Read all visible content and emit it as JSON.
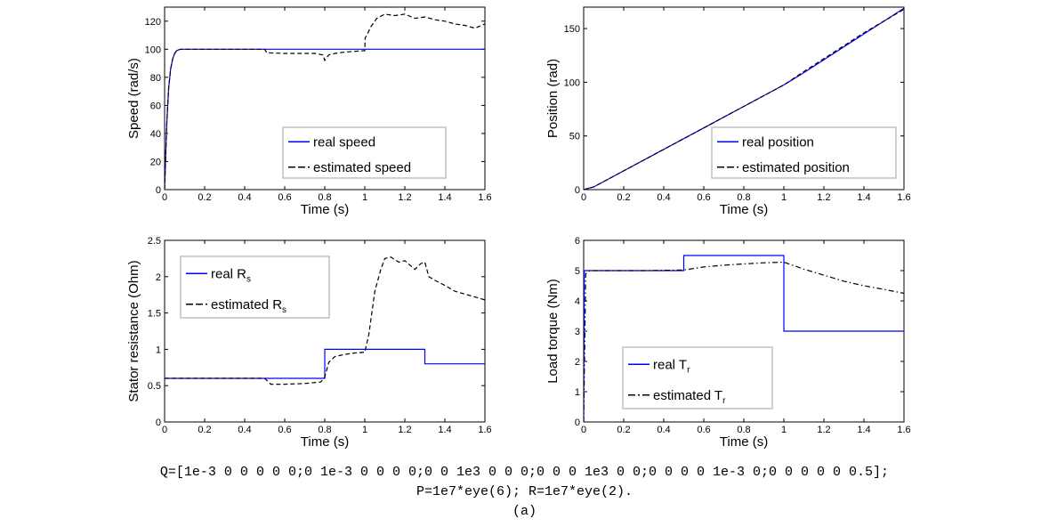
{
  "colors": {
    "real": "#0000ff",
    "estimated": "#000000",
    "frame": "#000000",
    "legend_border": "#c0c0c0"
  },
  "caption": {
    "line1": "Q=[1e-3 0 0 0 0 0;0 1e-3 0 0 0 0;0 0 1e3 0 0 0;0 0 0 1e3 0 0;0 0 0 0 1e-3 0;0 0 0 0 0 0.5];",
    "line2": "P=1e7*eye(6); R=1e7*eye(2).",
    "label": "(a)"
  },
  "chart_data": [
    {
      "type": "line",
      "xlabel": "Time (s)",
      "ylabel": "Speed (rad/s)",
      "xlim": [
        0,
        1.6
      ],
      "ylim": [
        0,
        130
      ],
      "xticks": [
        0,
        0.2,
        0.4,
        0.6,
        0.8,
        1,
        1.2,
        1.4,
        1.6
      ],
      "yticks": [
        0,
        20,
        40,
        60,
        80,
        100,
        120
      ],
      "legend_position": "bottom-right",
      "series": [
        {
          "name": "real  speed",
          "style": "solid",
          "x": [
            0,
            0.01,
            0.02,
            0.03,
            0.04,
            0.05,
            0.06,
            0.07,
            0.08,
            0.1,
            0.3,
            0.5,
            0.7,
            0.9,
            1.0,
            1.2,
            1.4,
            1.6
          ],
          "y": [
            0,
            45,
            72,
            86,
            93,
            97,
            99,
            99.6,
            100,
            100,
            100,
            100,
            100,
            100,
            100,
            100,
            100,
            100
          ]
        },
        {
          "name": "estimated speed",
          "style": "dashed",
          "x": [
            0,
            0.01,
            0.02,
            0.03,
            0.04,
            0.05,
            0.06,
            0.08,
            0.1,
            0.3,
            0.5,
            0.51,
            0.6,
            0.7,
            0.75,
            0.79,
            0.8,
            0.82,
            0.85,
            0.9,
            0.95,
            1.0,
            1.002,
            1.01,
            1.03,
            1.06,
            1.1,
            1.15,
            1.2,
            1.25,
            1.3,
            1.35,
            1.4,
            1.45,
            1.5,
            1.55,
            1.6
          ],
          "y": [
            0,
            45,
            72,
            86,
            93,
            97,
            99,
            100,
            100,
            100,
            100,
            97.5,
            97,
            97,
            97,
            96,
            92,
            96,
            97,
            98,
            98.5,
            99,
            108,
            110,
            116,
            122,
            125,
            124,
            125,
            122,
            123,
            121,
            120,
            118,
            117,
            115,
            118
          ]
        }
      ]
    },
    {
      "type": "line",
      "xlabel": "Time (s)",
      "ylabel": "Position (rad)",
      "xlim": [
        0,
        1.6
      ],
      "ylim": [
        0,
        170
      ],
      "xticks": [
        0,
        0.2,
        0.4,
        0.6,
        0.8,
        1,
        1.2,
        1.4,
        1.6
      ],
      "yticks": [
        0,
        50,
        100,
        150
      ],
      "legend_position": "bottom-right",
      "series": [
        {
          "name": "real  position",
          "style": "solid",
          "x": [
            0,
            0.05,
            0.1,
            0.2,
            0.4,
            0.6,
            0.8,
            1.0,
            1.1,
            1.2,
            1.3,
            1.4,
            1.5,
            1.6
          ],
          "y": [
            0,
            2.5,
            7.5,
            17.5,
            37.5,
            57.5,
            77.5,
            97.5,
            109,
            121,
            133,
            145,
            157,
            169
          ]
        },
        {
          "name": "estimated position",
          "style": "dashed",
          "x": [
            0,
            0.05,
            0.1,
            0.2,
            0.4,
            0.6,
            0.8,
            1.0,
            1.1,
            1.2,
            1.3,
            1.4,
            1.5,
            1.6
          ],
          "y": [
            0,
            2.5,
            7.5,
            17.5,
            37.5,
            57.5,
            77.5,
            97.5,
            110,
            122,
            134,
            146,
            157,
            168
          ]
        }
      ]
    },
    {
      "type": "line",
      "xlabel": "Time (s)",
      "ylabel": "Stator resistance (Ohm)",
      "xlim": [
        0,
        1.6
      ],
      "ylim": [
        0,
        2.5
      ],
      "xticks": [
        0,
        0.2,
        0.4,
        0.6,
        0.8,
        1,
        1.2,
        1.4,
        1.6
      ],
      "yticks": [
        0,
        0.5,
        1,
        1.5,
        2,
        2.5
      ],
      "legend_position": "top-left",
      "series": [
        {
          "name": "real  R",
          "subscript": "s",
          "style": "solid",
          "x": [
            0,
            0.8,
            0.8,
            1.3,
            1.3,
            1.6
          ],
          "y": [
            0.6,
            0.6,
            1.0,
            1.0,
            0.8,
            0.8
          ]
        },
        {
          "name": "estimated R",
          "subscript": "s",
          "style": "dashed",
          "x": [
            0,
            0.5,
            0.53,
            0.6,
            0.7,
            0.78,
            0.8,
            0.82,
            0.85,
            0.9,
            0.95,
            1.0,
            1.02,
            1.05,
            1.08,
            1.1,
            1.13,
            1.17,
            1.2,
            1.25,
            1.28,
            1.3,
            1.32,
            1.35,
            1.4,
            1.45,
            1.5,
            1.55,
            1.6
          ],
          "y": [
            0.6,
            0.6,
            0.52,
            0.52,
            0.53,
            0.55,
            0.62,
            0.82,
            0.9,
            0.93,
            0.95,
            0.96,
            1.2,
            1.8,
            2.1,
            2.25,
            2.27,
            2.2,
            2.22,
            2.1,
            2.18,
            2.2,
            2.0,
            1.95,
            1.88,
            1.8,
            1.76,
            1.72,
            1.68
          ]
        }
      ]
    },
    {
      "type": "line",
      "xlabel": "Time (s)",
      "ylabel": "Load torque (Nm)",
      "xlim": [
        0,
        1.6
      ],
      "ylim": [
        0,
        6
      ],
      "xticks": [
        0,
        0.2,
        0.4,
        0.6,
        0.8,
        1,
        1.2,
        1.4,
        1.6
      ],
      "yticks": [
        0,
        1,
        2,
        3,
        4,
        5,
        6
      ],
      "legend_position": "bottom-left",
      "series": [
        {
          "name": "real  T",
          "subscript": "r",
          "style": "solid",
          "x": [
            0,
            0.003,
            0.5,
            0.5,
            1.0,
            1.0,
            1.6
          ],
          "y": [
            0,
            5.0,
            5.0,
            5.5,
            5.5,
            3.0,
            3.0
          ]
        },
        {
          "name": "estimated T",
          "subscript": "r",
          "style": "dashdot",
          "x": [
            0,
            0.01,
            0.03,
            0.1,
            0.3,
            0.5,
            0.6,
            0.7,
            0.8,
            0.9,
            1.0,
            1.1,
            1.2,
            1.3,
            1.4,
            1.5,
            1.6
          ],
          "y": [
            0,
            4.9,
            5.0,
            5.0,
            5.0,
            5.02,
            5.12,
            5.18,
            5.22,
            5.26,
            5.28,
            5.05,
            4.85,
            4.65,
            4.5,
            4.38,
            4.25
          ]
        }
      ]
    }
  ]
}
